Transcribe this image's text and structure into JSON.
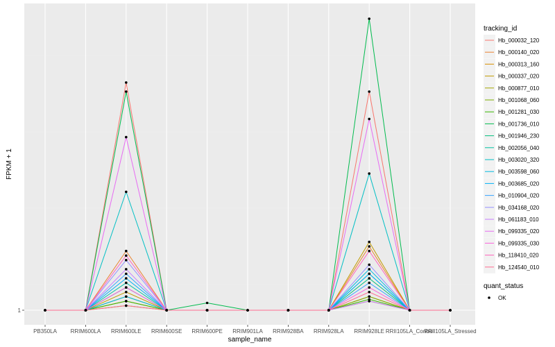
{
  "chart_data": {
    "type": "line",
    "xlabel": "sample_name",
    "ylabel": "FPKM + 1",
    "y_tick_labels": [
      "1"
    ],
    "categories": [
      "PB350LA",
      "RRIM600LA",
      "RRIM600LE",
      "RRIM600SE",
      "RRIM600PE",
      "RRIM901LA",
      "RRIM928BA",
      "RRIM928LA",
      "RRIM928LE",
      "RRII105LA_Control",
      "RRII105LA_Stressed"
    ],
    "ylim": [
      1,
      33
    ],
    "grid": true,
    "legend_position": "right",
    "series_legend_title": "tracking_id",
    "series": [
      {
        "name": "Hb_000032_120",
        "color": "#F8766D",
        "values": [
          1,
          1,
          26.0,
          1,
          1,
          1,
          1,
          1,
          25.0,
          1,
          1
        ]
      },
      {
        "name": "Hb_000140_020",
        "color": "#EA8331",
        "values": [
          1,
          1,
          7.5,
          1,
          1,
          1,
          1,
          1,
          8.0,
          1,
          1
        ]
      },
      {
        "name": "Hb_000313_160",
        "color": "#D89000",
        "values": [
          1,
          1,
          2.0,
          1,
          1,
          1,
          1,
          1,
          2.5,
          1,
          1
        ]
      },
      {
        "name": "Hb_000337_020",
        "color": "#C09B00",
        "values": [
          1,
          1,
          3.0,
          1,
          1,
          1,
          1,
          1,
          8.5,
          1,
          1
        ]
      },
      {
        "name": "Hb_000877_010",
        "color": "#A3A500",
        "values": [
          1,
          1,
          2.5,
          1,
          1,
          1,
          1,
          1,
          2.0,
          1,
          1
        ]
      },
      {
        "name": "Hb_001068_060",
        "color": "#7CAE00",
        "values": [
          1,
          1,
          1.5,
          1,
          1,
          1,
          1,
          1,
          2.5,
          1,
          1
        ]
      },
      {
        "name": "Hb_001281_030",
        "color": "#39B600",
        "values": [
          1,
          1,
          2.0,
          1,
          1,
          1,
          1,
          1,
          2.2,
          1,
          1
        ]
      },
      {
        "name": "Hb_001736_010",
        "color": "#00BB4E",
        "values": [
          1,
          1,
          25.0,
          1,
          1.8,
          1,
          1,
          1,
          33.0,
          1,
          1
        ]
      },
      {
        "name": "Hb_001946_230",
        "color": "#00BF7D",
        "values": [
          1,
          1,
          3.5,
          1,
          1,
          1,
          1,
          1,
          4.5,
          1,
          1
        ]
      },
      {
        "name": "Hb_002056_040",
        "color": "#00C1A3",
        "values": [
          1,
          1,
          4.0,
          1,
          1,
          1,
          1,
          1,
          5.0,
          1,
          1
        ]
      },
      {
        "name": "Hb_003020_320",
        "color": "#00BFC4",
        "values": [
          1,
          1,
          14.0,
          1,
          1,
          1,
          1,
          1,
          16.0,
          1,
          1
        ]
      },
      {
        "name": "Hb_003598_060",
        "color": "#00BAE0",
        "values": [
          1,
          1,
          2.5,
          1,
          1,
          1,
          1,
          1,
          5.5,
          1,
          1
        ]
      },
      {
        "name": "Hb_003685_020",
        "color": "#00B0F6",
        "values": [
          1,
          1,
          4.5,
          1,
          1,
          1,
          1,
          1,
          5.0,
          1,
          1
        ]
      },
      {
        "name": "Hb_010904_020",
        "color": "#35A2FF",
        "values": [
          1,
          1,
          5.0,
          1,
          1,
          1,
          1,
          1,
          4.0,
          1,
          1
        ]
      },
      {
        "name": "Hb_034168_020",
        "color": "#9590FF",
        "values": [
          1,
          1,
          6.5,
          1,
          1,
          1,
          1,
          1,
          6.0,
          1,
          1
        ]
      },
      {
        "name": "Hb_061183_010",
        "color": "#C77CFF",
        "values": [
          1,
          1,
          5.5,
          1,
          1,
          1,
          1,
          1,
          2.0,
          1,
          1
        ]
      },
      {
        "name": "Hb_099335_020",
        "color": "#E76BF3",
        "values": [
          1,
          1,
          20.0,
          1,
          1,
          1,
          1,
          1,
          22.0,
          1,
          1
        ]
      },
      {
        "name": "Hb_099335_030",
        "color": "#FA62DB",
        "values": [
          1,
          1,
          3.5,
          1,
          1,
          1,
          1,
          1,
          3.5,
          1,
          1
        ]
      },
      {
        "name": "Hb_118410_020",
        "color": "#FF62BC",
        "values": [
          1,
          1,
          7.0,
          1,
          1,
          1,
          1,
          1,
          7.5,
          1,
          1
        ]
      },
      {
        "name": "Hb_124540_010",
        "color": "#FF6C91",
        "values": [
          1,
          1,
          1.5,
          1,
          1,
          1,
          1,
          1,
          3.0,
          1,
          1
        ]
      }
    ],
    "shape_legend_title": "quant_status",
    "shape_legend_items": [
      "OK"
    ]
  }
}
